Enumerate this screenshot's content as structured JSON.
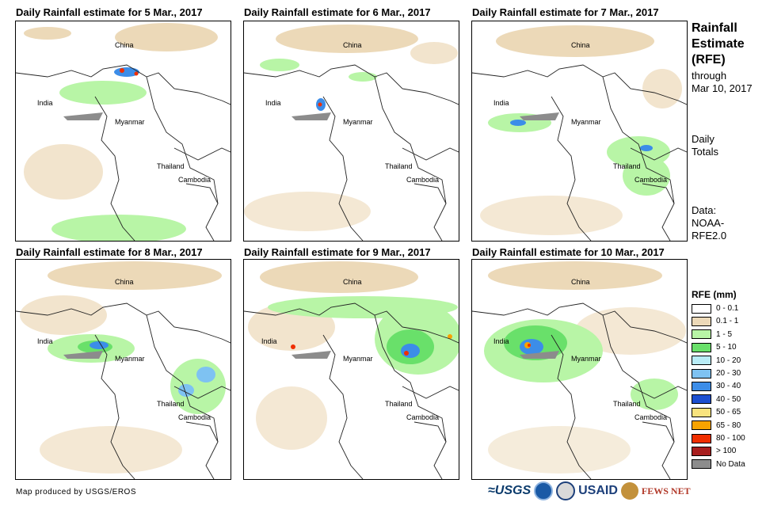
{
  "panels": [
    {
      "title": "Daily Rainfall estimate for 5 Mar., 2017"
    },
    {
      "title": "Daily Rainfall estimate for 6 Mar., 2017"
    },
    {
      "title": "Daily Rainfall estimate for 7 Mar., 2017"
    },
    {
      "title": "Daily Rainfall estimate for 8 Mar., 2017"
    },
    {
      "title": "Daily Rainfall estimate for 9 Mar., 2017"
    },
    {
      "title": "Daily Rainfall estimate for 10 Mar., 2017"
    }
  ],
  "countries": {
    "china": "China",
    "india": "India",
    "myanmar": "Myanmar",
    "thailand": "Thailand",
    "cambodia": "Cambodia"
  },
  "side": {
    "title_l1": "Rainfall",
    "title_l2": "Estimate",
    "title_l3": "(RFE)",
    "through": "through",
    "date": "Mar 10, 2017",
    "daily": "Daily",
    "totals": "Totals",
    "data_label": "Data:",
    "data_src1": "NOAA-",
    "data_src2": "RFE2.0"
  },
  "legend": {
    "title": "RFE (mm)",
    "items": [
      {
        "label": "0 - 0.1",
        "color": "#ffffff"
      },
      {
        "label": "0.1 - 1",
        "color": "#ecd9b8"
      },
      {
        "label": "1 - 5",
        "color": "#b8f5a6"
      },
      {
        "label": "5 - 10",
        "color": "#69e06a"
      },
      {
        "label": "10 - 20",
        "color": "#b8ecf6"
      },
      {
        "label": "20 - 30",
        "color": "#7ec2f2"
      },
      {
        "label": "30 - 40",
        "color": "#3c8de8"
      },
      {
        "label": "40 - 50",
        "color": "#1c4fd0"
      },
      {
        "label": "50 - 65",
        "color": "#f8e37e"
      },
      {
        "label": "65 - 80",
        "color": "#f7a300"
      },
      {
        "label": "80 - 100",
        "color": "#ef2e00"
      },
      {
        "label": "> 100",
        "color": "#a81e1e"
      },
      {
        "label": "No Data",
        "color": "#8c8c8c"
      }
    ]
  },
  "footer": {
    "credit": "Map produced by USGS/EROS",
    "logos": {
      "usgs": "≈USGS",
      "usaid": "USAID",
      "fews": "FEWS NET"
    }
  }
}
